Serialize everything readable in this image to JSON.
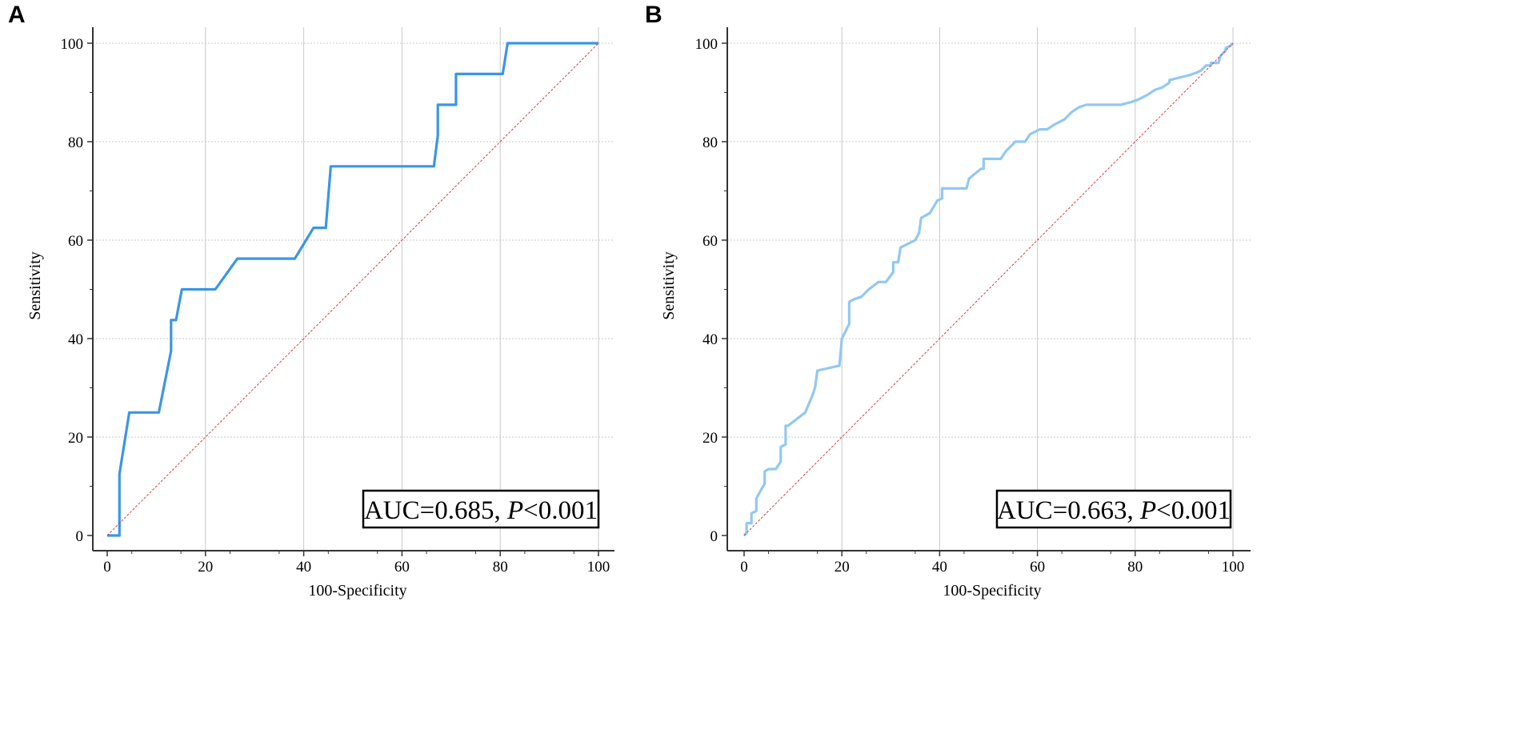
{
  "panels": [
    {
      "label": "A",
      "chart_data": {
        "type": "line",
        "title": "",
        "xlabel": "100-Specificity",
        "ylabel": "Sensitivity",
        "xlim": [
          0,
          100
        ],
        "ylim": [
          0,
          100
        ],
        "xticks": [
          0,
          20,
          40,
          60,
          80,
          100
        ],
        "yticks": [
          0,
          20,
          40,
          60,
          80,
          100
        ],
        "grid": true,
        "annotation": {
          "prefix": "AUC=0.685, ",
          "p_label": "P",
          "suffix": "<0.001"
        },
        "series": [
          {
            "name": "ROC curve",
            "color": "#3a96e6",
            "x": [
              0,
              2.5,
              2.5,
              4.5,
              10.5,
              13,
              13,
              14,
              15.2,
              22,
              26.5,
              38.2,
              42,
              44.5,
              45.5,
              66.5,
              67.3,
              67.3,
              71,
              71,
              80.5,
              81.5,
              100
            ],
            "y": [
              0,
              0,
              12.5,
              25,
              25,
              37.5,
              43.75,
              43.75,
              50,
              50,
              56.25,
              56.25,
              62.5,
              62.5,
              75,
              75,
              81.25,
              87.5,
              87.5,
              93.75,
              93.75,
              100,
              100
            ]
          },
          {
            "name": "Reference line",
            "color": "#d84040",
            "x": [
              0,
              100
            ],
            "y": [
              0,
              100
            ]
          }
        ]
      }
    },
    {
      "label": "B",
      "chart_data": {
        "type": "line",
        "title": "",
        "xlabel": "100-Specificity",
        "ylabel": "Sensitivity",
        "xlim": [
          0,
          100
        ],
        "ylim": [
          0,
          100
        ],
        "xticks": [
          0,
          20,
          40,
          60,
          80,
          100
        ],
        "yticks": [
          0,
          20,
          40,
          60,
          80,
          100
        ],
        "grid": true,
        "annotation": {
          "prefix": "AUC=0.663, ",
          "p_label": "P",
          "suffix": "<0.001"
        },
        "series": [
          {
            "name": "ROC curve",
            "color": "#92c8f2",
            "x": [
              0,
              0.5,
              0.5,
              1.5,
              1.5,
              2.5,
              2.5,
              3.3,
              4.2,
              4.2,
              5,
              6.5,
              7.5,
              7.5,
              8.5,
              8.5,
              9,
              12.5,
              14,
              14.5,
              15,
              19.5,
              20,
              20.5,
              21.5,
              21.5,
              22.5,
              24,
              25.5,
              27.5,
              29,
              30.5,
              30.5,
              31.5,
              32,
              35,
              35.8,
              36.2,
              38,
              39.5,
              40.5,
              40.5,
              45.5,
              46,
              48.5,
              49,
              49,
              52.5,
              53.5,
              55.5,
              57.5,
              58.5,
              59.5,
              60.5,
              62,
              63.5,
              65.5,
              67,
              68.5,
              70,
              77,
              79,
              80.5,
              82.5,
              84,
              85.5,
              87,
              87,
              89,
              91,
              92.5,
              93.5,
              94.5,
              95.5,
              95.5,
              97,
              97.5,
              97.5,
              98.5,
              98.5,
              99.5,
              100
            ],
            "y": [
              0,
              0.5,
              2.5,
              2.5,
              4.5,
              5,
              7.5,
              9,
              10.5,
              13,
              13.5,
              13.5,
              15,
              18,
              18.5,
              22.3,
              22.3,
              25,
              28.5,
              30,
              33.5,
              34.5,
              40,
              41,
              43,
              47.5,
              48,
              48.5,
              50,
              51.5,
              51.5,
              53.5,
              55.5,
              55.5,
              58.5,
              60,
              61.5,
              64.5,
              65.5,
              68,
              68.5,
              70.5,
              70.5,
              72.5,
              74.5,
              74.5,
              76.5,
              76.5,
              78,
              80,
              80,
              81.5,
              82,
              82.5,
              82.5,
              83.5,
              84.5,
              86,
              87,
              87.5,
              87.5,
              88,
              88.5,
              89.5,
              90.5,
              91,
              92,
              92.5,
              93,
              93.5,
              94,
              94.5,
              95.5,
              95.5,
              96,
              96,
              97.5,
              97.5,
              98.5,
              99,
              99.5,
              100
            ]
          },
          {
            "name": "Reference line",
            "color": "#d84040",
            "x": [
              0,
              100
            ],
            "y": [
              0,
              100
            ]
          }
        ]
      }
    }
  ]
}
